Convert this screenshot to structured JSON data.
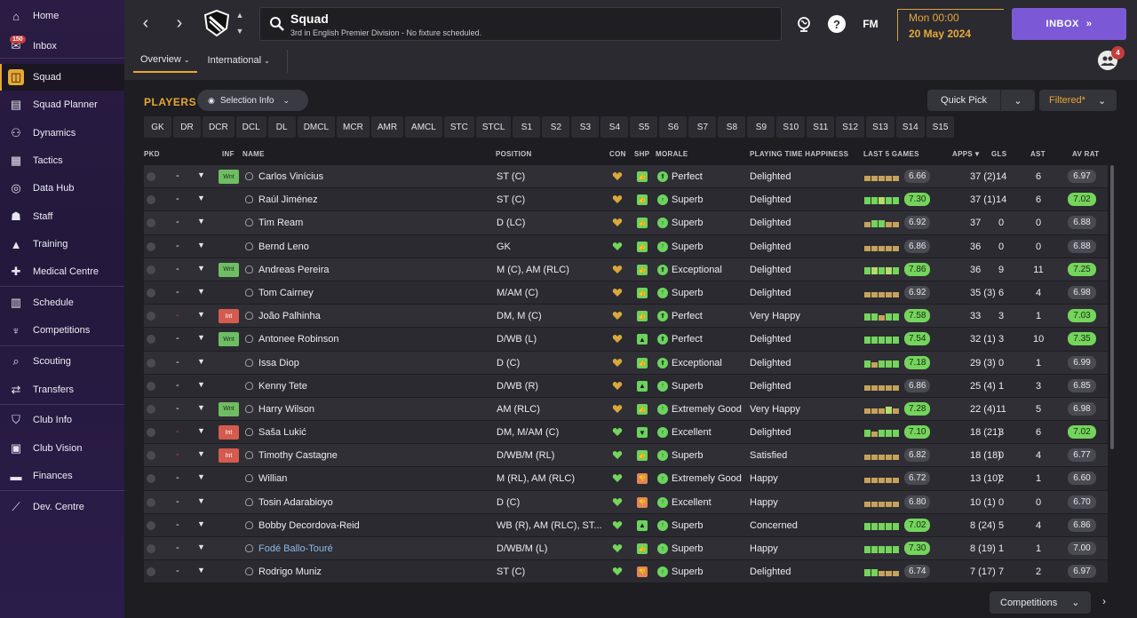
{
  "sidebar": {
    "items": [
      {
        "label": "Home",
        "icon": "home-icon",
        "glyph": "⌂"
      },
      {
        "label": "Inbox",
        "icon": "inbox-icon",
        "glyph": "✉",
        "badge": "150"
      },
      {
        "label": "Squad",
        "icon": "shirt-icon",
        "glyph": "◫",
        "active": true
      },
      {
        "label": "Squad Planner",
        "icon": "clipboard-icon",
        "glyph": "▤"
      },
      {
        "label": "Dynamics",
        "icon": "dynamics-icon",
        "glyph": "⚇"
      },
      {
        "label": "Tactics",
        "icon": "tactics-icon",
        "glyph": "▦"
      },
      {
        "label": "Data Hub",
        "icon": "data-hub-icon",
        "glyph": "◎"
      },
      {
        "label": "Staff",
        "icon": "staff-icon",
        "glyph": "☗"
      },
      {
        "label": "Training",
        "icon": "training-icon",
        "glyph": "▲"
      },
      {
        "label": "Medical Centre",
        "icon": "medical-icon",
        "glyph": "✚"
      },
      {
        "label": "Schedule",
        "icon": "schedule-icon",
        "glyph": "▥"
      },
      {
        "label": "Competitions",
        "icon": "trophy-icon",
        "glyph": "♆"
      },
      {
        "label": "Scouting",
        "icon": "scouting-icon",
        "glyph": "⌕"
      },
      {
        "label": "Transfers",
        "icon": "transfers-icon",
        "glyph": "⇄"
      },
      {
        "label": "Club Info",
        "icon": "shield-icon",
        "glyph": "⛉"
      },
      {
        "label": "Club Vision",
        "icon": "briefcase-icon",
        "glyph": "▣"
      },
      {
        "label": "Finances",
        "icon": "finances-icon",
        "glyph": "▬"
      },
      {
        "label": "Dev. Centre",
        "icon": "dev-centre-icon",
        "glyph": "⟋"
      }
    ]
  },
  "header": {
    "title": "Squad",
    "subtitle": "3rd in English Premier Division - No fixture scheduled.",
    "date_time": "Mon 00:00",
    "date": "20 May 2024",
    "inbox_label": "INBOX",
    "fm_label": "FM",
    "help_label": "?",
    "people_badge": "4",
    "tabs": [
      {
        "label": "Overview",
        "active": true
      },
      {
        "label": "International",
        "active": false
      }
    ]
  },
  "toolbar": {
    "players_label": "PLAYERS",
    "selection_info": "Selection Info",
    "quick_pick": "Quick Pick",
    "filtered": "Filtered*"
  },
  "positions": [
    "GK",
    "DR",
    "DCR",
    "DCL",
    "DL",
    "DMCL",
    "MCR",
    "AMR",
    "AMCL",
    "STC",
    "STCL",
    "S1",
    "S2",
    "S3",
    "S4",
    "S5",
    "S6",
    "S7",
    "S8",
    "S9",
    "S10",
    "S11",
    "S12",
    "S13",
    "S14",
    "S15"
  ],
  "columns": {
    "pkd": "PKD",
    "inf": "INF",
    "name": "NAME",
    "position": "POSITION",
    "con": "CON",
    "shp": "SHP",
    "morale": "MORALE",
    "pth": "PLAYING TIME HAPPINESS",
    "last5": "LAST 5 GAMES",
    "apps": "APPS",
    "gls": "GLS",
    "ast": "AST",
    "avrat": "AV RAT"
  },
  "colors": {
    "accent": "#e8a733",
    "green": "#74d45c",
    "purple": "#7b59d6",
    "red": "#d45b4e"
  },
  "players": [
    {
      "dash": "-",
      "inf": "Wnt",
      "name": "Carlos Vinícius",
      "pos": "ST (C)",
      "con": "gold",
      "shp": "green",
      "morale": "Perfect",
      "mor": "up2",
      "pth": "Delighted",
      "form": [
        "l",
        "l",
        "l",
        "l",
        "l"
      ],
      "last": "6.66",
      "lastg": false,
      "apps": "37 (2)",
      "gls": "14",
      "ast": "6",
      "av": "6.97",
      "avg": false
    },
    {
      "dash": "-",
      "inf": "",
      "name": "Raúl Jiménez",
      "pos": "ST (C)",
      "con": "gold",
      "shp": "green",
      "morale": "Superb",
      "mor": "up",
      "pth": "Delighted",
      "form": [
        "g",
        "g",
        "b",
        "g",
        "g"
      ],
      "last": "7.30",
      "lastg": true,
      "apps": "37 (1)",
      "gls": "14",
      "ast": "6",
      "av": "7.02",
      "avg": true
    },
    {
      "dash": "-",
      "inf": "",
      "name": "Tim Ream",
      "pos": "D (LC)",
      "con": "gold",
      "shp": "green",
      "morale": "Superb",
      "mor": "up",
      "pth": "Delighted",
      "form": [
        "l",
        "g",
        "g",
        "l",
        "l"
      ],
      "last": "6.92",
      "lastg": false,
      "apps": "37",
      "gls": "0",
      "ast": "0",
      "av": "6.88",
      "avg": false
    },
    {
      "dash": "-",
      "inf": "",
      "name": "Bernd Leno",
      "pos": "GK",
      "con": "green",
      "shp": "green",
      "morale": "Superb",
      "mor": "up",
      "pth": "Delighted",
      "form": [
        "l",
        "l",
        "l",
        "l",
        "l"
      ],
      "last": "6.86",
      "lastg": false,
      "apps": "36",
      "gls": "0",
      "ast": "0",
      "av": "6.88",
      "avg": false
    },
    {
      "dash": "-",
      "inf": "Wnt",
      "name": "Andreas Pereira",
      "pos": "M (C), AM (RLC)",
      "con": "gold",
      "shp": "green",
      "morale": "Exceptional",
      "mor": "up2",
      "pth": "Delighted",
      "form": [
        "g",
        "b",
        "g",
        "b",
        "g"
      ],
      "last": "7.86",
      "lastg": true,
      "apps": "36",
      "gls": "9",
      "ast": "11",
      "av": "7.25",
      "avg": true
    },
    {
      "dash": "-",
      "inf": "",
      "name": "Tom Cairney",
      "pos": "M/AM (C)",
      "con": "gold",
      "shp": "green",
      "morale": "Superb",
      "mor": "up",
      "pth": "Delighted",
      "form": [
        "l",
        "l",
        "l",
        "l",
        "l"
      ],
      "last": "6.92",
      "lastg": false,
      "apps": "35 (3)",
      "gls": "6",
      "ast": "4",
      "av": "6.98",
      "avg": false
    },
    {
      "dash": "-",
      "dashred": true,
      "inf": "Int",
      "name": "João Palhinha",
      "pos": "DM, M (C)",
      "con": "gold",
      "shp": "green",
      "morale": "Perfect",
      "mor": "up2",
      "pth": "Very Happy",
      "form": [
        "g",
        "g",
        "l",
        "g",
        "g"
      ],
      "last": "7.58",
      "lastg": true,
      "apps": "33",
      "gls": "3",
      "ast": "1",
      "av": "7.03",
      "avg": true
    },
    {
      "dash": "-",
      "inf": "Wnt",
      "name": "Antonee Robinson",
      "pos": "D/WB (L)",
      "con": "gold",
      "shp": "up",
      "morale": "Perfect",
      "mor": "up2",
      "pth": "Delighted",
      "form": [
        "g",
        "g",
        "g",
        "g",
        "g"
      ],
      "last": "7.54",
      "lastg": true,
      "apps": "32 (1)",
      "gls": "3",
      "ast": "10",
      "av": "7.35",
      "avg": true
    },
    {
      "dash": "-",
      "inf": "",
      "name": "Issa Diop",
      "pos": "D (C)",
      "con": "gold",
      "shp": "green",
      "morale": "Exceptional",
      "mor": "up2",
      "pth": "Delighted",
      "form": [
        "g",
        "l",
        "g",
        "g",
        "g"
      ],
      "last": "7.18",
      "lastg": true,
      "apps": "29 (3)",
      "gls": "0",
      "ast": "1",
      "av": "6.99",
      "avg": false
    },
    {
      "dash": "-",
      "inf": "",
      "name": "Kenny Tete",
      "pos": "D/WB (R)",
      "con": "gold",
      "shp": "up",
      "morale": "Superb",
      "mor": "up",
      "pth": "Delighted",
      "form": [
        "l",
        "l",
        "l",
        "l",
        "l"
      ],
      "last": "6.86",
      "lastg": false,
      "apps": "25 (4)",
      "gls": "1",
      "ast": "3",
      "av": "6.85",
      "avg": false
    },
    {
      "dash": "-",
      "inf": "Wnt",
      "name": "Harry Wilson",
      "pos": "AM (RLC)",
      "con": "gold",
      "shp": "green",
      "morale": "Extremely Good",
      "mor": "up",
      "pth": "Very Happy",
      "form": [
        "l",
        "l",
        "l",
        "b",
        "l"
      ],
      "last": "7.28",
      "lastg": true,
      "apps": "22 (4)",
      "gls": "11",
      "ast": "5",
      "av": "6.98",
      "avg": false
    },
    {
      "dash": "-",
      "dashred": true,
      "inf": "Int",
      "name": "Saša Lukić",
      "pos": "DM, M/AM (C)",
      "con": "green",
      "shp": "down",
      "morale": "Excellent",
      "mor": "up",
      "pth": "Delighted",
      "form": [
        "g",
        "l",
        "g",
        "g",
        "g"
      ],
      "last": "7.10",
      "lastg": true,
      "apps": "18 (21)",
      "gls": "3",
      "ast": "6",
      "av": "7.02",
      "avg": true
    },
    {
      "dash": "-",
      "dashred": true,
      "inf": "Int",
      "name": "Timothy Castagne",
      "pos": "D/WB/M (RL)",
      "con": "green",
      "shp": "green",
      "morale": "Superb",
      "mor": "up",
      "pth": "Satisfied",
      "form": [
        "l",
        "l",
        "l",
        "l",
        "l"
      ],
      "last": "6.82",
      "lastg": false,
      "apps": "18 (18)",
      "gls": "0",
      "ast": "4",
      "av": "6.77",
      "avg": false
    },
    {
      "dash": "-",
      "inf": "",
      "name": "Willian",
      "pos": "M (RL), AM (RLC)",
      "con": "green",
      "shp": "orange",
      "morale": "Extremely Good",
      "mor": "up",
      "pth": "Happy",
      "form": [
        "l",
        "l",
        "l",
        "l",
        "l"
      ],
      "last": "6.72",
      "lastg": false,
      "apps": "13 (10)",
      "gls": "2",
      "ast": "1",
      "av": "6.60",
      "avg": false
    },
    {
      "dash": "-",
      "inf": "",
      "name": "Tosin Adarabioyo",
      "pos": "D (C)",
      "con": "green",
      "shp": "orange",
      "morale": "Excellent",
      "mor": "up",
      "pth": "Happy",
      "form": [
        "l",
        "l",
        "l",
        "l",
        "l"
      ],
      "last": "6.80",
      "lastg": false,
      "apps": "10 (1)",
      "gls": "0",
      "ast": "0",
      "av": "6.70",
      "avg": false
    },
    {
      "dash": "-",
      "inf": "",
      "name": "Bobby Decordova-Reid",
      "pos": "WB (R), AM (RLC), ST...",
      "con": "green",
      "shp": "up",
      "morale": "Superb",
      "mor": "up",
      "pth": "Concerned",
      "form": [
        "g",
        "g",
        "g",
        "g",
        "g"
      ],
      "last": "7.02",
      "lastg": true,
      "apps": "8 (24)",
      "gls": "5",
      "ast": "4",
      "av": "6.86",
      "avg": false
    },
    {
      "dash": "-",
      "inf": "",
      "name": "Fodé Ballo-Touré",
      "link": true,
      "pos": "D/WB/M (L)",
      "con": "green",
      "shp": "green",
      "morale": "Superb",
      "mor": "up",
      "pth": "Happy",
      "form": [
        "g",
        "g",
        "g",
        "g",
        "g"
      ],
      "last": "7.30",
      "lastg": true,
      "apps": "8 (19)",
      "gls": "1",
      "ast": "1",
      "av": "7.00",
      "avg": false
    },
    {
      "dash": "-",
      "inf": "",
      "name": "Rodrigo Muniz",
      "pos": "ST (C)",
      "con": "green",
      "shp": "orange",
      "morale": "Superb",
      "mor": "up",
      "pth": "Delighted",
      "form": [
        "g",
        "g",
        "l",
        "l",
        "l"
      ],
      "last": "6.74",
      "lastg": false,
      "apps": "7 (17)",
      "gls": "7",
      "ast": "2",
      "av": "6.97",
      "avg": false
    }
  ],
  "footer": {
    "competitions": "Competitions"
  }
}
